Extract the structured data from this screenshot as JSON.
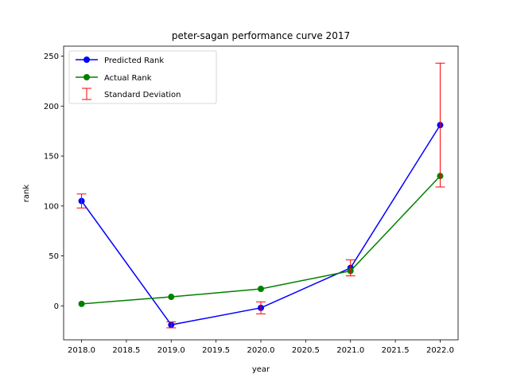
{
  "chart_data": {
    "type": "line",
    "title": "peter-sagan performance curve 2017",
    "xlabel": "year",
    "ylabel": "rank",
    "xlim": [
      2017.8,
      2022.2
    ],
    "ylim": [
      -34,
      260
    ],
    "xticks": [
      2018.0,
      2018.5,
      2019.0,
      2019.5,
      2020.0,
      2020.5,
      2021.0,
      2021.5,
      2022.0
    ],
    "xtick_labels": [
      "2018.0",
      "2018.5",
      "2019.0",
      "2019.5",
      "2020.0",
      "2020.5",
      "2021.0",
      "2021.5",
      "2022.0"
    ],
    "yticks": [
      0,
      50,
      100,
      150,
      200,
      250
    ],
    "ytick_labels": [
      "0",
      "50",
      "100",
      "150",
      "200",
      "250"
    ],
    "legend_position": "top-left",
    "series": [
      {
        "name": "Predicted Rank",
        "color": "#0000ff",
        "x": [
          2018,
          2019,
          2020,
          2021,
          2022
        ],
        "y": [
          105,
          -19,
          -2,
          38,
          181
        ],
        "error": [
          7,
          3,
          6,
          8,
          62
        ]
      },
      {
        "name": "Actual Rank",
        "color": "#008000",
        "x": [
          2018,
          2019,
          2020,
          2021,
          2022
        ],
        "y": [
          2,
          9,
          17,
          35,
          130
        ]
      }
    ],
    "error_legend": "Standard Deviation",
    "error_color": "#ff0000"
  }
}
